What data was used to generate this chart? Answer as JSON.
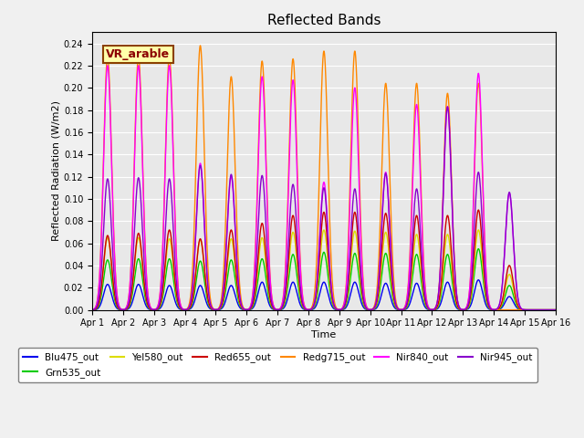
{
  "title": "Reflected Bands",
  "xlabel": "Time",
  "ylabel": "Reflected Radiation (W/m2)",
  "ylim": [
    0,
    0.25
  ],
  "annotation": "VR_arable",
  "series_order": [
    "Blu475_out",
    "Grn535_out",
    "Yel580_out",
    "Red655_out",
    "Redg715_out",
    "Nir840_out",
    "Nir945_out"
  ],
  "series": {
    "Blu475_out": {
      "color": "#0000EE",
      "lw": 1.0
    },
    "Grn535_out": {
      "color": "#00CC00",
      "lw": 1.0
    },
    "Yel580_out": {
      "color": "#DDDD00",
      "lw": 1.0
    },
    "Red655_out": {
      "color": "#CC0000",
      "lw": 1.0
    },
    "Redg715_out": {
      "color": "#FF8800",
      "lw": 1.0
    },
    "Nir840_out": {
      "color": "#FF00FF",
      "lw": 1.0
    },
    "Nir945_out": {
      "color": "#8800CC",
      "lw": 1.0
    }
  },
  "day_peaks": {
    "Blu475_out": [
      0.023,
      0.023,
      0.022,
      0.022,
      0.022,
      0.025,
      0.025,
      0.025,
      0.025,
      0.024,
      0.024,
      0.025,
      0.027,
      0.012,
      0.0
    ],
    "Grn535_out": [
      0.045,
      0.046,
      0.046,
      0.044,
      0.045,
      0.046,
      0.05,
      0.052,
      0.051,
      0.051,
      0.05,
      0.05,
      0.055,
      0.022,
      0.0
    ],
    "Yel580_out": [
      0.065,
      0.065,
      0.064,
      0.063,
      0.064,
      0.065,
      0.07,
      0.072,
      0.071,
      0.07,
      0.068,
      0.068,
      0.072,
      0.032,
      0.0
    ],
    "Red655_out": [
      0.067,
      0.069,
      0.072,
      0.064,
      0.072,
      0.078,
      0.085,
      0.088,
      0.088,
      0.087,
      0.085,
      0.085,
      0.09,
      0.04,
      0.0
    ],
    "Redg715_out": [
      0.228,
      0.228,
      0.228,
      0.238,
      0.21,
      0.224,
      0.226,
      0.233,
      0.233,
      0.204,
      0.204,
      0.195,
      0.204,
      0.0,
      0.0
    ],
    "Nir840_out": [
      0.22,
      0.22,
      0.22,
      0.132,
      0.12,
      0.21,
      0.207,
      0.115,
      0.2,
      0.124,
      0.185,
      0.183,
      0.213,
      0.105,
      0.0
    ],
    "Nir945_out": [
      0.118,
      0.119,
      0.118,
      0.13,
      0.122,
      0.121,
      0.113,
      0.11,
      0.109,
      0.123,
      0.109,
      0.183,
      0.124,
      0.106,
      0.0
    ]
  },
  "n_days": 15,
  "pts_per_day": 200,
  "sigma": 0.13,
  "background_color": "#E8E8E8",
  "fig_facecolor": "#F0F0F0"
}
